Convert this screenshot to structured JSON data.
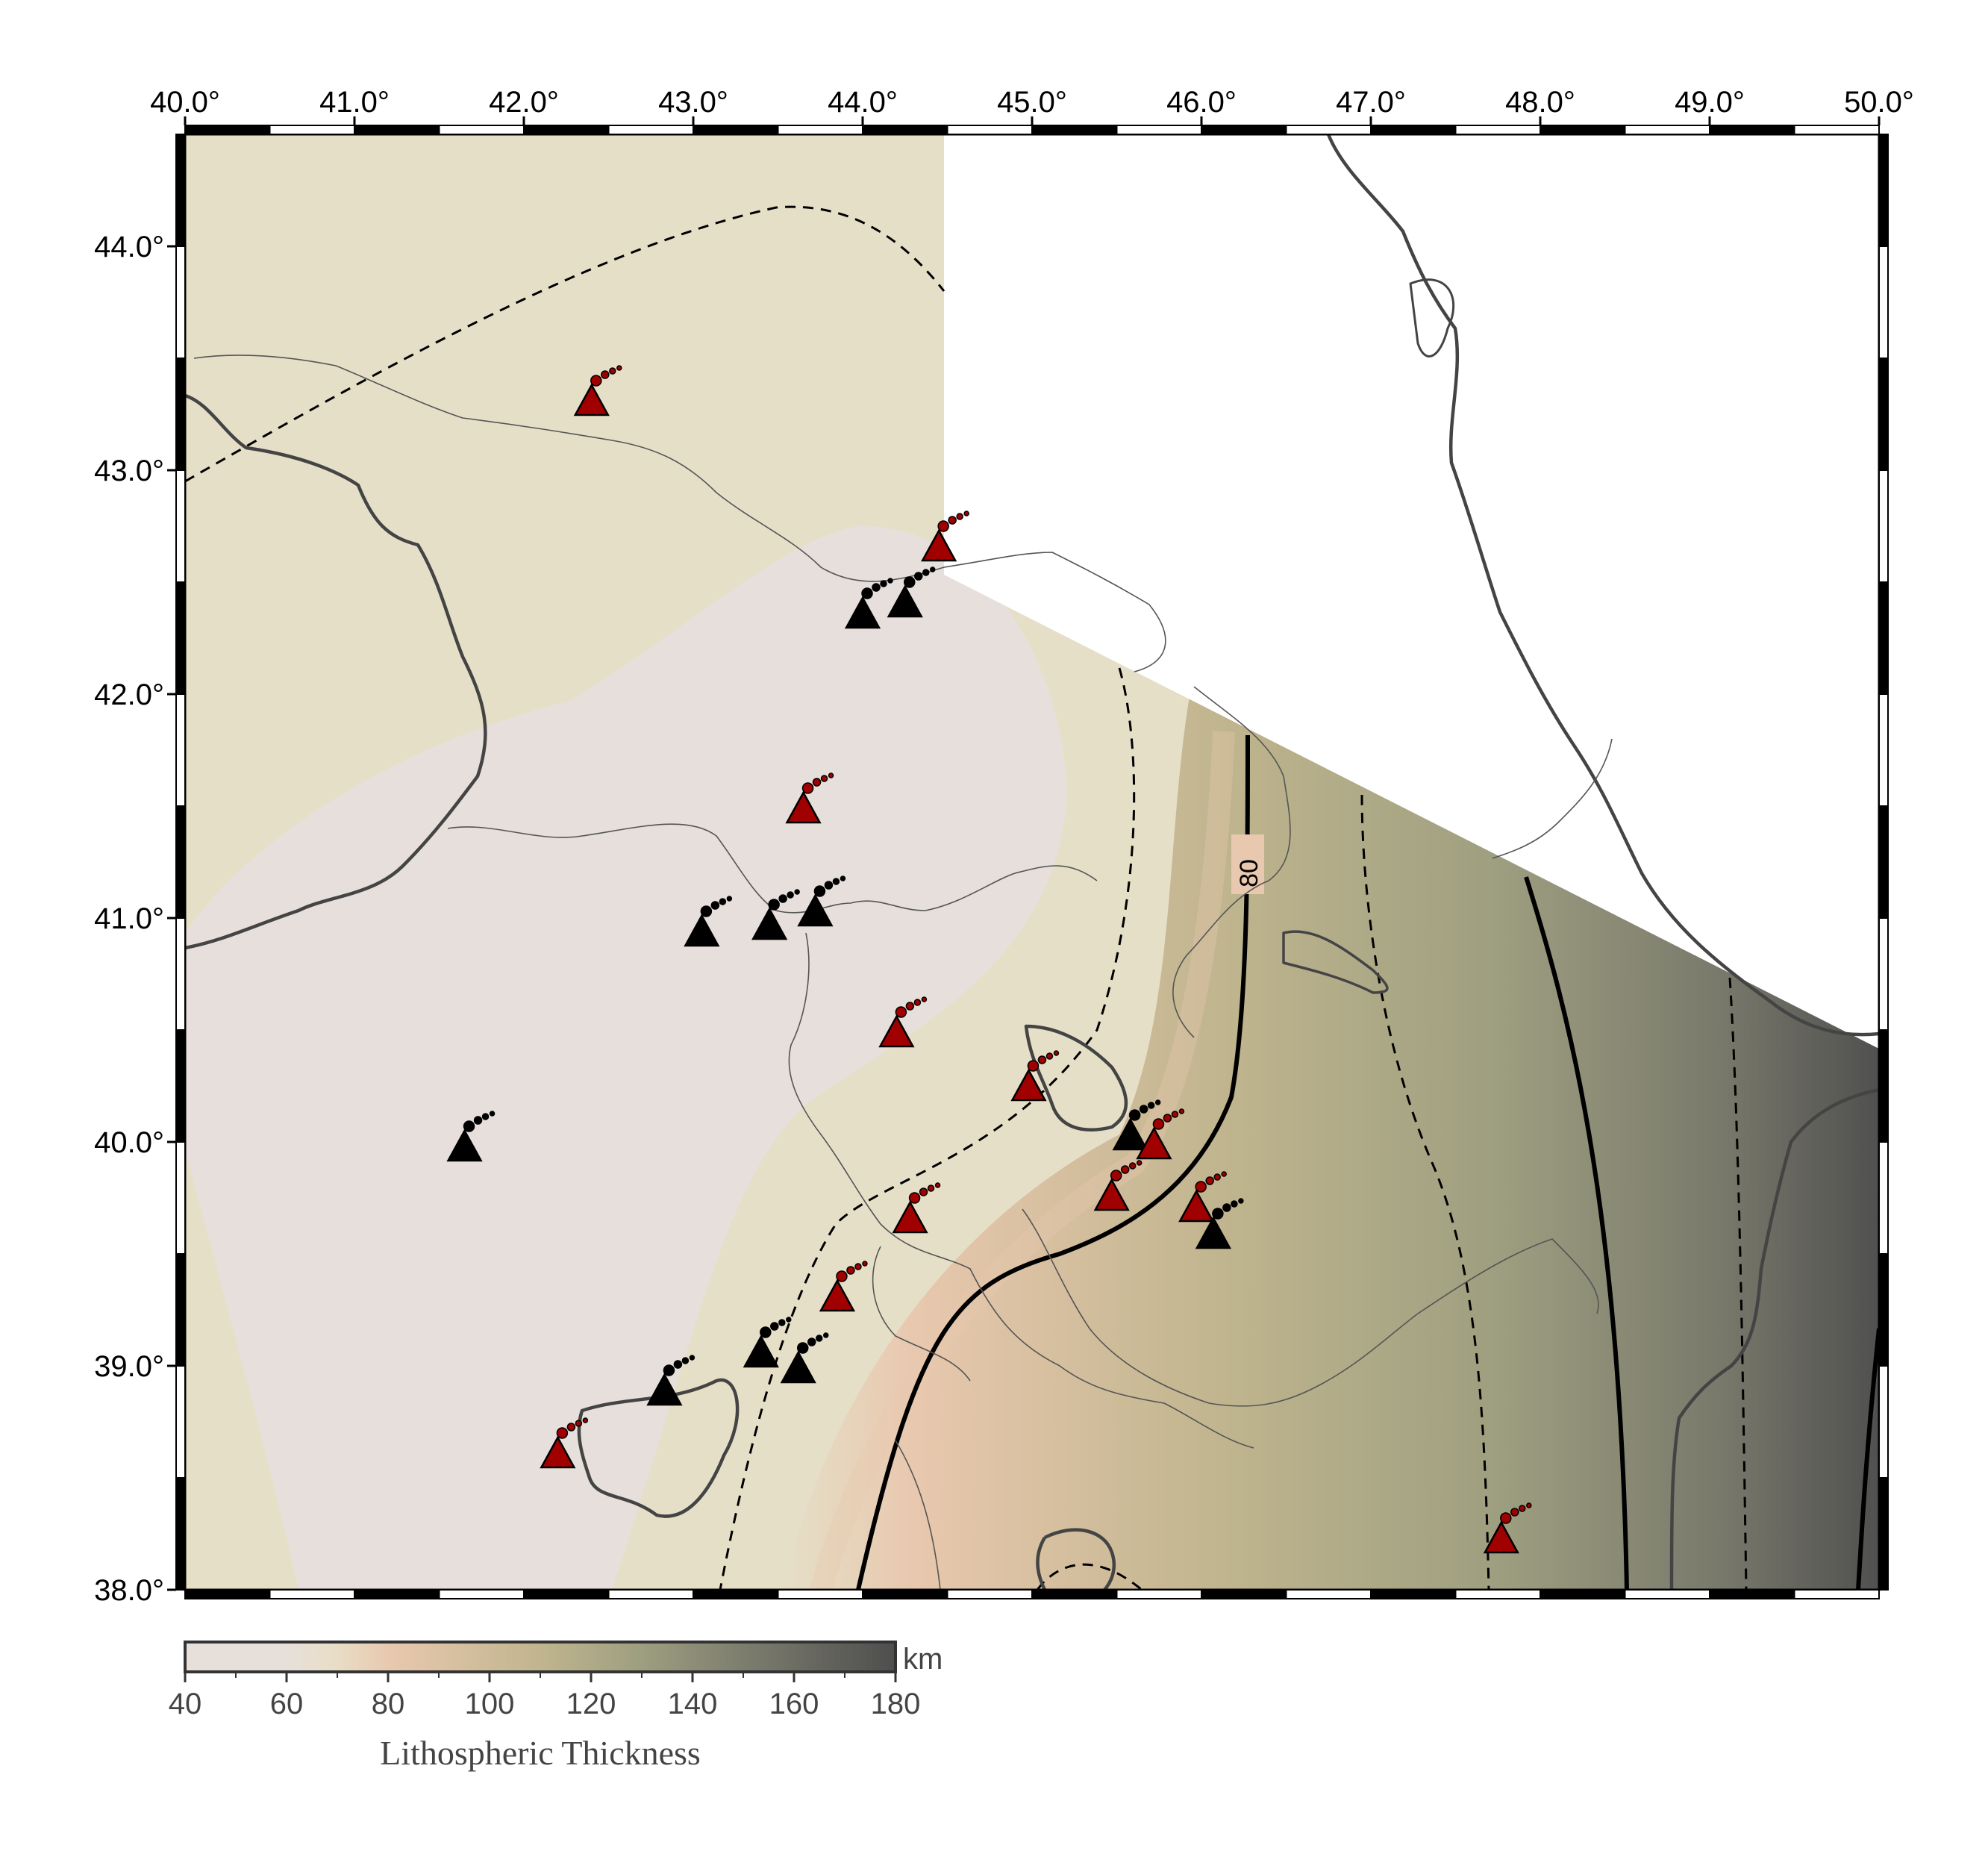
{
  "map": {
    "lon_ticks": [
      "40.0°",
      "41.0°",
      "42.0°",
      "43.0°",
      "44.0°",
      "45.0°",
      "46.0°",
      "47.0°",
      "48.0°",
      "49.0°",
      "50.0°"
    ],
    "lat_ticks": [
      "44.0°",
      "43.0°",
      "42.0°",
      "41.0°",
      "40.0°",
      "39.0°",
      "38.0°"
    ],
    "lon_range": [
      40.0,
      50.0
    ],
    "lat_range": [
      38.0,
      44.5
    ],
    "contour_label": "80",
    "colorbar": {
      "unit": "km",
      "title": "Lithospheric Thickness",
      "ticks": [
        "40",
        "60",
        "80",
        "100",
        "120",
        "140",
        "160",
        "180"
      ],
      "range": [
        40,
        180
      ],
      "colors": [
        "#e7e0da",
        "#e8dec7",
        "#e8c8ae",
        "#c0b58e",
        "#9e9f80",
        "#7a7a6c",
        "#4e4e4e"
      ]
    },
    "volcano_colors": {
      "holocene": "#a00000",
      "other": "#000000"
    },
    "volcanoes": [
      {
        "lon": 42.4,
        "lat": 43.3,
        "type": "holocene"
      },
      {
        "lon": 44.45,
        "lat": 42.65,
        "type": "holocene"
      },
      {
        "lon": 44.0,
        "lat": 42.35,
        "type": "other"
      },
      {
        "lon": 44.25,
        "lat": 42.4,
        "type": "other"
      },
      {
        "lon": 43.65,
        "lat": 41.48,
        "type": "holocene"
      },
      {
        "lon": 43.05,
        "lat": 40.93,
        "type": "other"
      },
      {
        "lon": 43.45,
        "lat": 40.96,
        "type": "other"
      },
      {
        "lon": 43.72,
        "lat": 41.02,
        "type": "other"
      },
      {
        "lon": 44.2,
        "lat": 40.48,
        "type": "holocene"
      },
      {
        "lon": 41.65,
        "lat": 39.97,
        "type": "other"
      },
      {
        "lon": 44.98,
        "lat": 40.24,
        "type": "holocene"
      },
      {
        "lon": 45.58,
        "lat": 40.02,
        "type": "other"
      },
      {
        "lon": 45.72,
        "lat": 39.98,
        "type": "holocene"
      },
      {
        "lon": 45.47,
        "lat": 39.75,
        "type": "holocene"
      },
      {
        "lon": 45.97,
        "lat": 39.7,
        "type": "holocene"
      },
      {
        "lon": 46.07,
        "lat": 39.58,
        "type": "other"
      },
      {
        "lon": 44.28,
        "lat": 39.65,
        "type": "holocene"
      },
      {
        "lon": 43.85,
        "lat": 39.3,
        "type": "holocene"
      },
      {
        "lon": 43.4,
        "lat": 39.05,
        "type": "other"
      },
      {
        "lon": 43.62,
        "lat": 38.98,
        "type": "other"
      },
      {
        "lon": 42.83,
        "lat": 38.88,
        "type": "other"
      },
      {
        "lon": 42.2,
        "lat": 38.6,
        "type": "holocene"
      },
      {
        "lon": 47.77,
        "lat": 38.22,
        "type": "holocene"
      }
    ]
  }
}
